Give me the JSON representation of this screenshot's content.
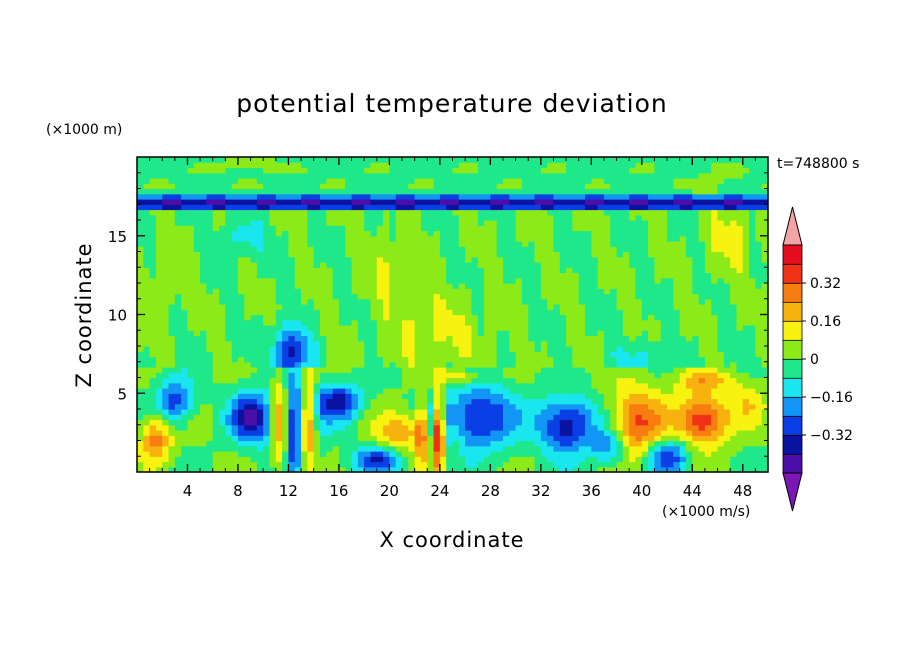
{
  "chart_data": {
    "type": "heatmap",
    "title": "potential temperature deviation",
    "xlabel": "X coordinate",
    "ylabel": "Z coordinate",
    "x_unit": "(×1000 m/s)",
    "y_unit": "(×1000 m)",
    "time_label": "t=748800 s",
    "xlim": [
      0,
      50
    ],
    "ylim": [
      0,
      20
    ],
    "x_ticks": [
      4,
      8,
      12,
      16,
      20,
      24,
      28,
      32,
      36,
      40,
      44,
      48
    ],
    "y_ticks": [
      5,
      10,
      15
    ],
    "colorbar": {
      "levels": [
        -0.48,
        -0.4,
        -0.32,
        -0.24,
        -0.16,
        -0.08,
        0,
        0.08,
        0.16,
        0.24,
        0.32,
        0.4,
        0.48
      ],
      "tick_labels": [
        "0.32",
        "0.16",
        "0",
        "−0.16",
        "−0.32"
      ],
      "tick_values": [
        0.32,
        0.16,
        0,
        -0.16,
        -0.32
      ],
      "colors": [
        "#7a17b5",
        "#4b0fa8",
        "#0b12a0",
        "#0a3fe6",
        "#1296f5",
        "#19e6ee",
        "#1ee88a",
        "#8cea19",
        "#f7f210",
        "#f7b210",
        "#f77d10",
        "#ef3216",
        "#e60e1e",
        "#f3a2a6"
      ]
    }
  }
}
